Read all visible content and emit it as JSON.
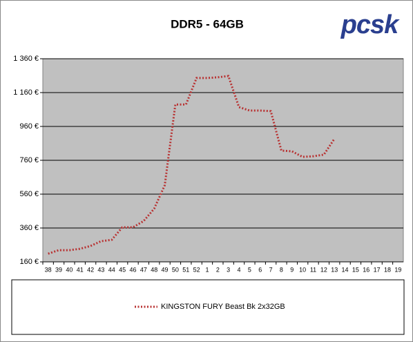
{
  "chart_data": {
    "type": "line",
    "title": "DDR5 - 64GB",
    "logo": "pcsk",
    "categories": [
      "38",
      "39",
      "40",
      "41",
      "42",
      "43",
      "44",
      "45",
      "46",
      "47",
      "48",
      "49",
      "50",
      "51",
      "52",
      "1",
      "2",
      "3",
      "4",
      "5",
      "6",
      "7",
      "8",
      "9",
      "10",
      "11",
      "12",
      "13",
      "14",
      "15",
      "16",
      "17",
      "18",
      "19"
    ],
    "series": [
      {
        "name": "KINGSTON FURY Beast Bk 2x32GB",
        "color": "#b83232",
        "values": [
          208,
          229,
          229,
          237,
          254,
          282,
          290,
          364,
          364,
          401,
          474,
          613,
          1090,
          1090,
          1246,
          1246,
          1250,
          1258,
          1074,
          1054,
          1054,
          1050,
          817,
          813,
          780,
          784,
          793,
          887,
          null,
          null,
          null,
          null,
          null,
          null
        ]
      }
    ],
    "ylim": [
      160,
      1360
    ],
    "yticks": [
      {
        "value": 160,
        "label": "160 €"
      },
      {
        "value": 360,
        "label": "360 €"
      },
      {
        "value": 560,
        "label": "560 €"
      },
      {
        "value": 760,
        "label": "760 €"
      },
      {
        "value": 960,
        "label": "960 €"
      },
      {
        "value": 1160,
        "label": "1 160 €"
      },
      {
        "value": 1360,
        "label": "1 360 €"
      }
    ],
    "grid": true
  }
}
